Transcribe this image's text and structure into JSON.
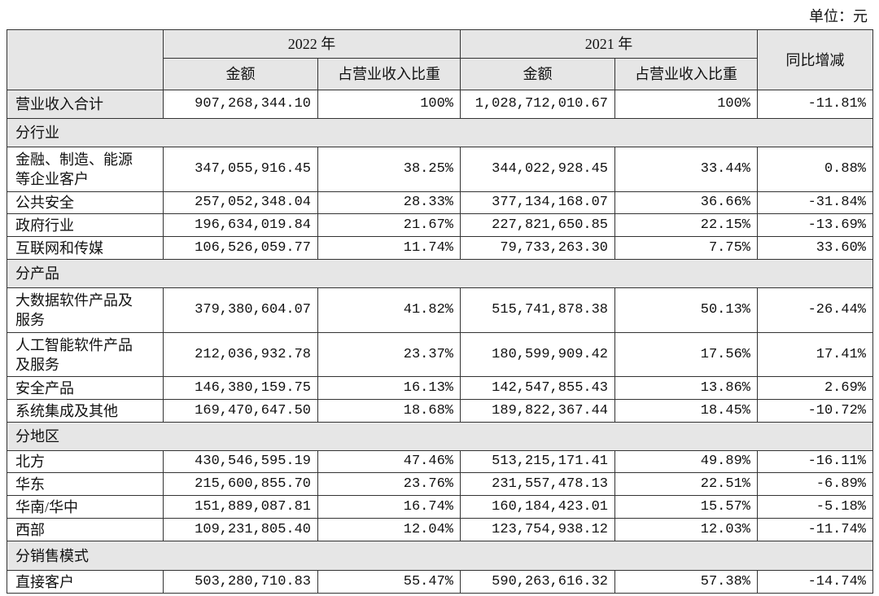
{
  "unit": "单位：元",
  "table": {
    "header": {
      "year_2022": "2022 年",
      "year_2021": "2021 年",
      "yoy": "同比增减",
      "amount_2022": "金额",
      "share_2022": "占营业收入比重",
      "amount_2021": "金额",
      "share_2021": "占营业收入比重"
    },
    "rows": [
      [
        "营业收入合计",
        "907,268,344.10",
        "100%",
        "1,028,712,010.67",
        "100%",
        "-11.81%"
      ],
      [
        "分行业"
      ],
      [
        "金融、制造、能源等企业客户",
        "347,055,916.45",
        "38.25%",
        "344,022,928.45",
        "33.44%",
        "0.88%"
      ],
      [
        "公共安全",
        "257,052,348.04",
        "28.33%",
        "377,134,168.07",
        "36.66%",
        "-31.84%"
      ],
      [
        "政府行业",
        "196,634,019.84",
        "21.67%",
        "227,821,650.85",
        "22.15%",
        "-13.69%"
      ],
      [
        "互联网和传媒",
        "106,526,059.77",
        "11.74%",
        "79,733,263.30",
        "7.75%",
        "33.60%"
      ],
      [
        "分产品"
      ],
      [
        "大数据软件产品及服务",
        "379,380,604.07",
        "41.82%",
        "515,741,878.38",
        "50.13%",
        "-26.44%"
      ],
      [
        "人工智能软件产品及服务",
        "212,036,932.78",
        "23.37%",
        "180,599,909.42",
        "17.56%",
        "17.41%"
      ],
      [
        "安全产品",
        "146,380,159.75",
        "16.13%",
        "142,547,855.43",
        "13.86%",
        "2.69%"
      ],
      [
        "系统集成及其他",
        "169,470,647.50",
        "18.68%",
        "189,822,367.44",
        "18.45%",
        "-10.72%"
      ],
      [
        "分地区"
      ],
      [
        "北方",
        "430,546,595.19",
        "47.46%",
        "513,215,171.41",
        "49.89%",
        "-16.11%"
      ],
      [
        "华东",
        "215,600,855.70",
        "23.76%",
        "231,557,478.13",
        "22.51%",
        "-6.89%"
      ],
      [
        "华南/华中",
        "151,889,087.81",
        "16.74%",
        "160,184,423.01",
        "15.57%",
        "-5.18%"
      ],
      [
        "西部",
        "109,231,805.40",
        "12.04%",
        "123,754,938.12",
        "12.03%",
        "-11.74%"
      ],
      [
        "分销售模式"
      ],
      [
        "直接客户",
        "503,280,710.83",
        "55.47%",
        "590,263,616.32",
        "57.38%",
        "-14.74%"
      ]
    ]
  }
}
